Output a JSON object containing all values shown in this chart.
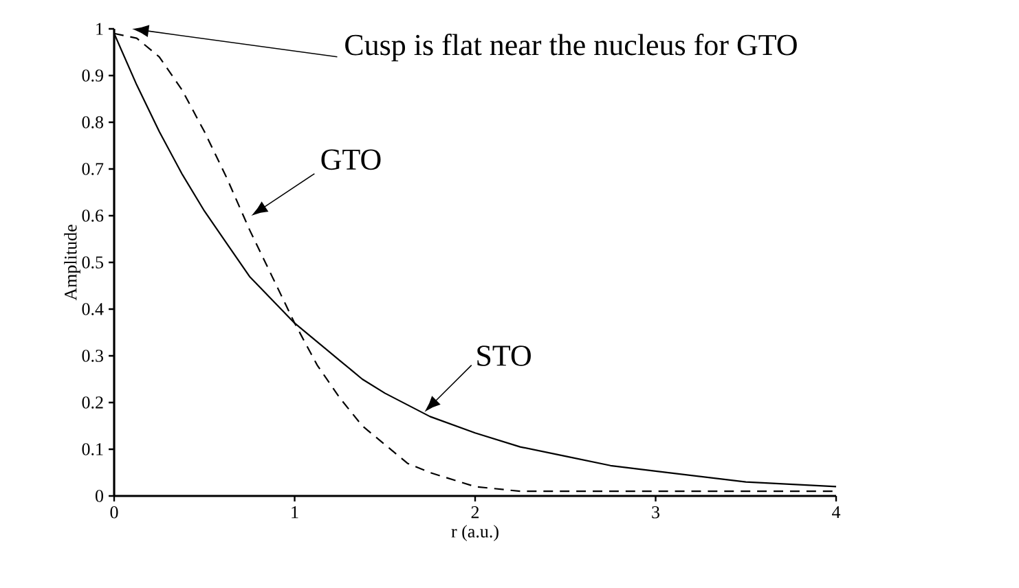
{
  "chart_data": {
    "type": "line",
    "xlabel": "r (a.u.)",
    "ylabel": "Amplitude",
    "xlim": [
      0,
      4
    ],
    "ylim": [
      0,
      1
    ],
    "xticks": [
      0,
      1,
      2,
      3,
      4
    ],
    "yticks": [
      0,
      0.1,
      0.2,
      0.3,
      0.4,
      0.5,
      0.6,
      0.7,
      0.8,
      0.9,
      1
    ],
    "marker": "none",
    "series": [
      {
        "color": "#000000",
        "line_style": "solid",
        "x": [
          0,
          0.125,
          0.25,
          0.375,
          0.5,
          0.625,
          0.75,
          0.875,
          1,
          1.125,
          1.25,
          1.375,
          1.5,
          1.75,
          2,
          2.25,
          2.5,
          2.75,
          3,
          3.5,
          4
        ],
        "values": [
          0.99,
          0.88,
          0.78,
          0.69,
          0.61,
          0.54,
          0.47,
          0.42,
          0.37,
          0.33,
          0.29,
          0.25,
          0.22,
          0.17,
          0.135,
          0.105,
          0.085,
          0.065,
          0.053,
          0.03,
          0.02
        ]
      },
      {
        "color": "#000000",
        "line_style": "dashed",
        "x": [
          0,
          0.125,
          0.25,
          0.375,
          0.5,
          0.625,
          0.75,
          0.875,
          1,
          1.125,
          1.25,
          1.375,
          1.5,
          1.625,
          1.75,
          2,
          2.25,
          2.5,
          3,
          3.5,
          4
        ],
        "values": [
          0.99,
          0.98,
          0.94,
          0.87,
          0.78,
          0.68,
          0.57,
          0.47,
          0.37,
          0.28,
          0.21,
          0.15,
          0.11,
          0.07,
          0.05,
          0.02,
          0.01,
          0.01,
          0.01,
          0.01,
          0.01
        ]
      }
    ],
    "annotations": [
      "Cusp is flat near the nucleus for GTO",
      {
        "text": "GTO",
        "x": 0.76,
        "y": 0.6
      },
      {
        "text": "STO",
        "x": 1.72,
        "y": 0.18
      }
    ]
  }
}
